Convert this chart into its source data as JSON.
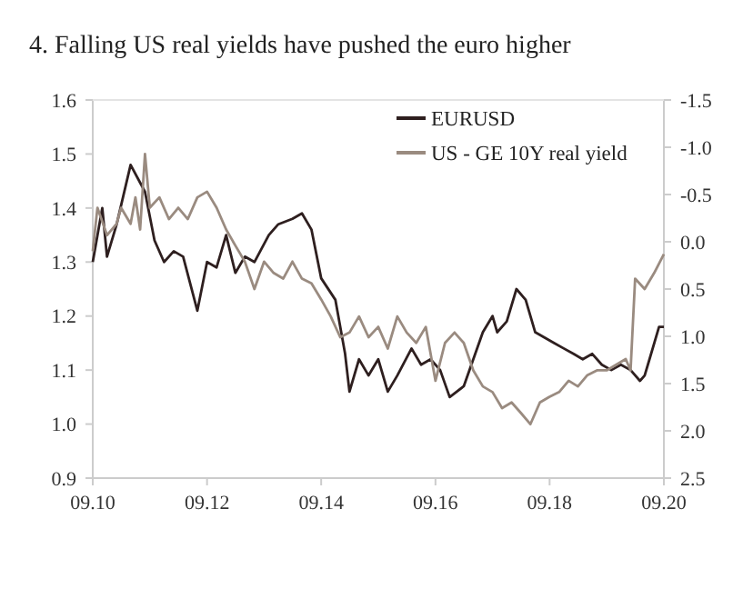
{
  "chart_data": {
    "type": "line",
    "title": "4.  Falling US real yields have pushed the euro higher",
    "xlim": [
      "2010-09",
      "2020-09"
    ],
    "xticks": [
      {
        "value": "2010-09",
        "label": "09.10"
      },
      {
        "value": "2012-09",
        "label": "09.12"
      },
      {
        "value": "2014-09",
        "label": "09.14"
      },
      {
        "value": "2016-09",
        "label": "09.16"
      },
      {
        "value": "2018-09",
        "label": "09.18"
      },
      {
        "value": "2020-09",
        "label": "09.20"
      }
    ],
    "ylim": [
      0.9,
      1.6
    ],
    "yticks": [
      {
        "value": 0.9,
        "label": "0.9"
      },
      {
        "value": 1.0,
        "label": "1.0"
      },
      {
        "value": 1.1,
        "label": "1.1"
      },
      {
        "value": 1.2,
        "label": "1.2"
      },
      {
        "value": 1.3,
        "label": "1.3"
      },
      {
        "value": 1.4,
        "label": "1.4"
      },
      {
        "value": 1.5,
        "label": "1.5"
      },
      {
        "value": 1.6,
        "label": "1.6"
      }
    ],
    "y2lim": [
      2.5,
      -1.5
    ],
    "y2ticks": [
      {
        "value": -1.5,
        "label": "-1.5"
      },
      {
        "value": -1.0,
        "label": "-1.0"
      },
      {
        "value": -0.5,
        "label": "-0.5"
      },
      {
        "value": 0.0,
        "label": "0.0"
      },
      {
        "value": 0.5,
        "label": "0.5"
      },
      {
        "value": 1.0,
        "label": "1.0"
      },
      {
        "value": 1.5,
        "label": "1.5"
      },
      {
        "value": 2.0,
        "label": "2.0"
      },
      {
        "value": 2.5,
        "label": "2.5"
      }
    ],
    "grid": false,
    "legend": "top right",
    "series": [
      {
        "name": "EURUSD",
        "color": "#2e1f1f",
        "x": [
          "2010-09",
          "2010-11",
          "2010-12",
          "2011-02",
          "2011-05",
          "2011-08",
          "2011-10",
          "2011-12",
          "2012-02",
          "2012-04",
          "2012-07",
          "2012-09",
          "2012-11",
          "2013-01",
          "2013-03",
          "2013-05",
          "2013-07",
          "2013-10",
          "2013-12",
          "2014-03",
          "2014-05",
          "2014-07",
          "2014-09",
          "2014-12",
          "2015-02",
          "2015-03",
          "2015-05",
          "2015-07",
          "2015-09",
          "2015-11",
          "2016-01",
          "2016-04",
          "2016-06",
          "2016-08",
          "2016-10",
          "2016-12",
          "2017-03",
          "2017-05",
          "2017-07",
          "2017-09",
          "2017-10",
          "2017-12",
          "2018-02",
          "2018-04",
          "2018-06",
          "2018-08",
          "2018-10",
          "2018-12",
          "2019-02",
          "2019-04",
          "2019-06",
          "2019-08",
          "2019-10",
          "2019-12",
          "2020-02",
          "2020-04",
          "2020-05",
          "2020-06",
          "2020-08",
          "2020-09"
        ],
        "values": [
          1.3,
          1.4,
          1.31,
          1.37,
          1.48,
          1.43,
          1.34,
          1.3,
          1.32,
          1.31,
          1.21,
          1.3,
          1.29,
          1.35,
          1.28,
          1.31,
          1.3,
          1.35,
          1.37,
          1.38,
          1.39,
          1.36,
          1.27,
          1.23,
          1.13,
          1.06,
          1.12,
          1.09,
          1.12,
          1.06,
          1.09,
          1.14,
          1.11,
          1.12,
          1.1,
          1.05,
          1.07,
          1.12,
          1.17,
          1.2,
          1.17,
          1.19,
          1.25,
          1.23,
          1.17,
          1.16,
          1.15,
          1.14,
          1.13,
          1.12,
          1.13,
          1.11,
          1.1,
          1.11,
          1.1,
          1.08,
          1.09,
          1.12,
          1.18,
          1.18
        ]
      },
      {
        "name": "US - GE 10Y real yield",
        "color": "#9a8b80",
        "axis": "y2",
        "x": [
          "2010-09",
          "2010-10",
          "2010-12",
          "2011-02",
          "2011-03",
          "2011-05",
          "2011-06",
          "2011-07",
          "2011-08",
          "2011-09",
          "2011-11",
          "2012-01",
          "2012-03",
          "2012-05",
          "2012-07",
          "2012-09",
          "2012-11",
          "2013-01",
          "2013-03",
          "2013-05",
          "2013-07",
          "2013-09",
          "2013-11",
          "2014-01",
          "2014-03",
          "2014-05",
          "2014-07",
          "2014-09",
          "2014-11",
          "2015-01",
          "2015-03",
          "2015-05",
          "2015-07",
          "2015-09",
          "2015-11",
          "2016-01",
          "2016-03",
          "2016-05",
          "2016-07",
          "2016-09",
          "2016-11",
          "2017-01",
          "2017-03",
          "2017-05",
          "2017-07",
          "2017-09",
          "2017-11",
          "2018-01",
          "2018-03",
          "2018-05",
          "2018-07",
          "2018-09",
          "2018-11",
          "2019-01",
          "2019-03",
          "2019-05",
          "2019-07",
          "2019-09",
          "2019-11",
          "2020-01",
          "2020-02",
          "2020-03",
          "2020-05",
          "2020-07",
          "2020-09"
        ],
        "values": [
          0.1,
          -0.36,
          -0.07,
          -0.19,
          -0.36,
          -0.19,
          -0.47,
          -0.13,
          -0.93,
          -0.36,
          -0.47,
          -0.24,
          -0.36,
          -0.24,
          -0.47,
          -0.53,
          -0.36,
          -0.13,
          0.04,
          0.21,
          0.5,
          0.21,
          0.33,
          0.39,
          0.21,
          0.39,
          0.44,
          0.61,
          0.79,
          1.01,
          0.96,
          0.79,
          1.01,
          0.9,
          1.13,
          0.79,
          0.96,
          1.07,
          0.9,
          1.47,
          1.07,
          0.96,
          1.07,
          1.36,
          1.53,
          1.59,
          1.76,
          1.7,
          1.81,
          1.93,
          1.7,
          1.64,
          1.59,
          1.47,
          1.53,
          1.41,
          1.36,
          1.36,
          1.3,
          1.24,
          1.36,
          0.39,
          0.5,
          0.33,
          0.13
        ]
      }
    ]
  }
}
